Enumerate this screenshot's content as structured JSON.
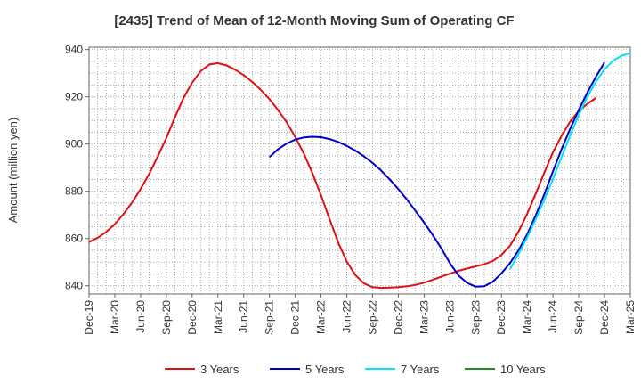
{
  "chart_data": {
    "type": "line",
    "title": "[2435]  Trend of Mean of 12-Month Moving Sum of Operating CF",
    "xlabel": "",
    "ylabel": "Amount (million yen)",
    "ylim": [
      836.5,
      941
    ],
    "yticks": [
      840,
      860,
      880,
      900,
      920,
      940
    ],
    "x_tick_labels": [
      "Dec-19",
      "Mar-20",
      "Jun-20",
      "Sep-20",
      "Dec-20",
      "Mar-21",
      "Jun-21",
      "Sep-21",
      "Dec-21",
      "Mar-22",
      "Jun-22",
      "Sep-22",
      "Dec-22",
      "Mar-23",
      "Jun-23",
      "Sep-23",
      "Dec-23",
      "Mar-24",
      "Jun-24",
      "Sep-24",
      "Dec-24",
      "Mar-25"
    ],
    "x_unit": "months since Dec-19",
    "xlim": [
      0,
      63
    ],
    "grid": true,
    "legend_position": "bottom",
    "series": [
      {
        "name": "3 Years",
        "color": "#dd1111",
        "start": 0,
        "values": [
          858.5,
          860.3,
          862.8,
          866.1,
          870.3,
          875.2,
          880.9,
          887.4,
          894.7,
          902.6,
          911.3,
          919.6,
          926.0,
          930.9,
          933.7,
          934.2,
          933.3,
          931.5,
          929.2,
          926.3,
          922.9,
          919.0,
          914.4,
          909.2,
          903.0,
          895.9,
          887.7,
          878.3,
          868.2,
          858.3,
          850.2,
          844.5,
          841.0,
          839.4,
          839.1,
          839.2,
          839.4,
          839.8,
          840.4,
          841.3,
          842.5,
          843.8,
          845.1,
          846.3,
          847.3,
          848.2,
          849.1,
          850.5,
          853.0,
          857.0,
          863.0,
          870.5,
          879.0,
          888.0,
          896.5,
          903.5,
          909.5,
          914.0,
          917.0,
          919.5
        ]
      },
      {
        "name": "5 Years",
        "color": "#0000cc",
        "start": 21,
        "values": [
          894.5,
          897.8,
          900.2,
          901.9,
          902.8,
          903.1,
          902.9,
          902.1,
          900.9,
          899.2,
          897.2,
          894.8,
          892.0,
          888.8,
          885.0,
          880.9,
          876.5,
          871.7,
          866.7,
          861.5,
          855.8,
          849.6,
          844.4,
          841.2,
          839.6,
          839.8,
          841.7,
          845.2,
          849.6,
          855.0,
          861.8,
          869.8,
          878.8,
          888.4,
          897.8,
          906.4,
          914.4,
          921.8,
          928.5,
          934.5
        ]
      },
      {
        "name": "7 Years",
        "color": "#00e5ee",
        "start": 49,
        "values": [
          847.0,
          853.5,
          860.5,
          868.2,
          876.5,
          885.2,
          894.5,
          903.6,
          912.2,
          920.0,
          926.4,
          931.6,
          935.3,
          937.4,
          938.5
        ]
      },
      {
        "name": "10 Years",
        "color": "#228b22",
        "start": 0,
        "values": []
      }
    ]
  }
}
